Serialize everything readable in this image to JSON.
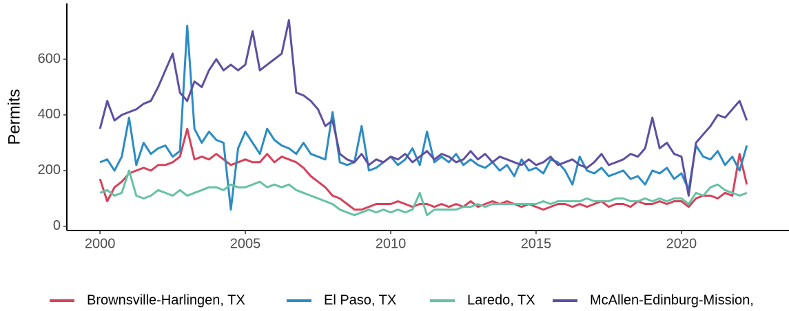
{
  "chart_data": {
    "type": "line",
    "y_label": "Permits",
    "x": [
      2000,
      2000.25,
      2000.5,
      2000.75,
      2001,
      2001.25,
      2001.5,
      2001.75,
      2002,
      2002.25,
      2002.5,
      2002.75,
      2003,
      2003.25,
      2003.5,
      2003.75,
      2004,
      2004.25,
      2004.5,
      2004.75,
      2005,
      2005.25,
      2005.5,
      2005.75,
      2006,
      2006.25,
      2006.5,
      2006.75,
      2007,
      2007.25,
      2007.5,
      2007.75,
      2008,
      2008.25,
      2008.5,
      2008.75,
      2009,
      2009.25,
      2009.5,
      2009.75,
      2010,
      2010.25,
      2010.5,
      2010.75,
      2011,
      2011.25,
      2011.5,
      2011.75,
      2012,
      2012.25,
      2012.5,
      2012.75,
      2013,
      2013.25,
      2013.5,
      2013.75,
      2014,
      2014.25,
      2014.5,
      2014.75,
      2015,
      2015.25,
      2015.5,
      2015.75,
      2016,
      2016.25,
      2016.5,
      2016.75,
      2017,
      2017.25,
      2017.5,
      2017.75,
      2018,
      2018.25,
      2018.5,
      2018.75,
      2019,
      2019.25,
      2019.5,
      2019.75,
      2020,
      2020.25,
      2020.5,
      2020.75,
      2021,
      2021.25,
      2021.5,
      2021.75,
      2022,
      2022.25
    ],
    "series": [
      {
        "name": "Brownsville-Harlingen, TX",
        "color": "#d7415a",
        "values": [
          170,
          90,
          140,
          160,
          190,
          200,
          210,
          200,
          220,
          220,
          230,
          250,
          350,
          240,
          250,
          240,
          260,
          240,
          220,
          230,
          240,
          230,
          230,
          260,
          230,
          250,
          240,
          230,
          210,
          180,
          160,
          140,
          110,
          100,
          80,
          60,
          60,
          70,
          80,
          80,
          80,
          90,
          80,
          70,
          80,
          80,
          70,
          80,
          70,
          80,
          70,
          90,
          70,
          80,
          90,
          80,
          90,
          80,
          70,
          80,
          70,
          60,
          70,
          80,
          80,
          70,
          80,
          70,
          80,
          90,
          70,
          80,
          80,
          70,
          90,
          80,
          80,
          90,
          80,
          90,
          90,
          70,
          100,
          110,
          110,
          100,
          120,
          110,
          260,
          150
        ]
      },
      {
        "name": "El Paso, TX",
        "color": "#2b8cc4",
        "values": [
          230,
          240,
          200,
          250,
          390,
          220,
          300,
          260,
          280,
          290,
          250,
          270,
          720,
          350,
          300,
          340,
          310,
          300,
          60,
          280,
          340,
          300,
          260,
          350,
          310,
          290,
          280,
          260,
          300,
          260,
          250,
          240,
          410,
          230,
          220,
          230,
          360,
          200,
          210,
          230,
          250,
          220,
          240,
          280,
          220,
          340,
          230,
          250,
          230,
          260,
          220,
          240,
          220,
          210,
          230,
          200,
          220,
          180,
          240,
          200,
          210,
          190,
          240,
          230,
          200,
          150,
          250,
          200,
          190,
          210,
          180,
          190,
          200,
          170,
          180,
          150,
          200,
          190,
          210,
          170,
          190,
          130,
          290,
          250,
          240,
          270,
          220,
          250,
          200,
          290
        ]
      },
      {
        "name": "Laredo, TX",
        "color": "#66c2a5",
        "values": [
          120,
          130,
          110,
          120,
          200,
          110,
          100,
          110,
          130,
          120,
          110,
          130,
          110,
          120,
          130,
          140,
          140,
          130,
          150,
          140,
          140,
          150,
          160,
          140,
          150,
          140,
          150,
          130,
          120,
          110,
          100,
          90,
          80,
          60,
          50,
          40,
          50,
          60,
          50,
          60,
          50,
          60,
          50,
          60,
          120,
          40,
          60,
          60,
          60,
          60,
          70,
          70,
          80,
          70,
          80,
          80,
          80,
          80,
          80,
          80,
          80,
          90,
          80,
          90,
          90,
          90,
          90,
          100,
          90,
          90,
          90,
          100,
          100,
          90,
          90,
          100,
          90,
          100,
          90,
          100,
          100,
          80,
          120,
          110,
          140,
          150,
          130,
          120,
          110,
          120
        ]
      },
      {
        "name": "McAllen-Edinburg-Mission,",
        "color": "#5e4fa2",
        "values": [
          350,
          450,
          380,
          400,
          410,
          420,
          440,
          450,
          500,
          560,
          620,
          480,
          450,
          520,
          500,
          560,
          600,
          560,
          580,
          560,
          580,
          700,
          560,
          580,
          600,
          620,
          740,
          480,
          470,
          450,
          420,
          360,
          380,
          260,
          240,
          230,
          260,
          220,
          240,
          230,
          250,
          240,
          260,
          230,
          250,
          270,
          240,
          260,
          250,
          230,
          240,
          270,
          240,
          260,
          230,
          250,
          240,
          230,
          220,
          240,
          220,
          230,
          250,
          220,
          230,
          240,
          220,
          210,
          230,
          260,
          220,
          230,
          240,
          260,
          250,
          280,
          390,
          280,
          300,
          260,
          250,
          110,
          300,
          330,
          360,
          400,
          390,
          420,
          450,
          380
        ]
      }
    ],
    "xlim": [
      1998.86,
      2023.7
    ],
    "ylim": [
      -15,
      800
    ],
    "xticks": [
      2000,
      2005,
      2010,
      2015,
      2020
    ],
    "yticks": [
      0,
      200,
      400,
      600
    ],
    "grid": false,
    "legend": "bottom"
  }
}
